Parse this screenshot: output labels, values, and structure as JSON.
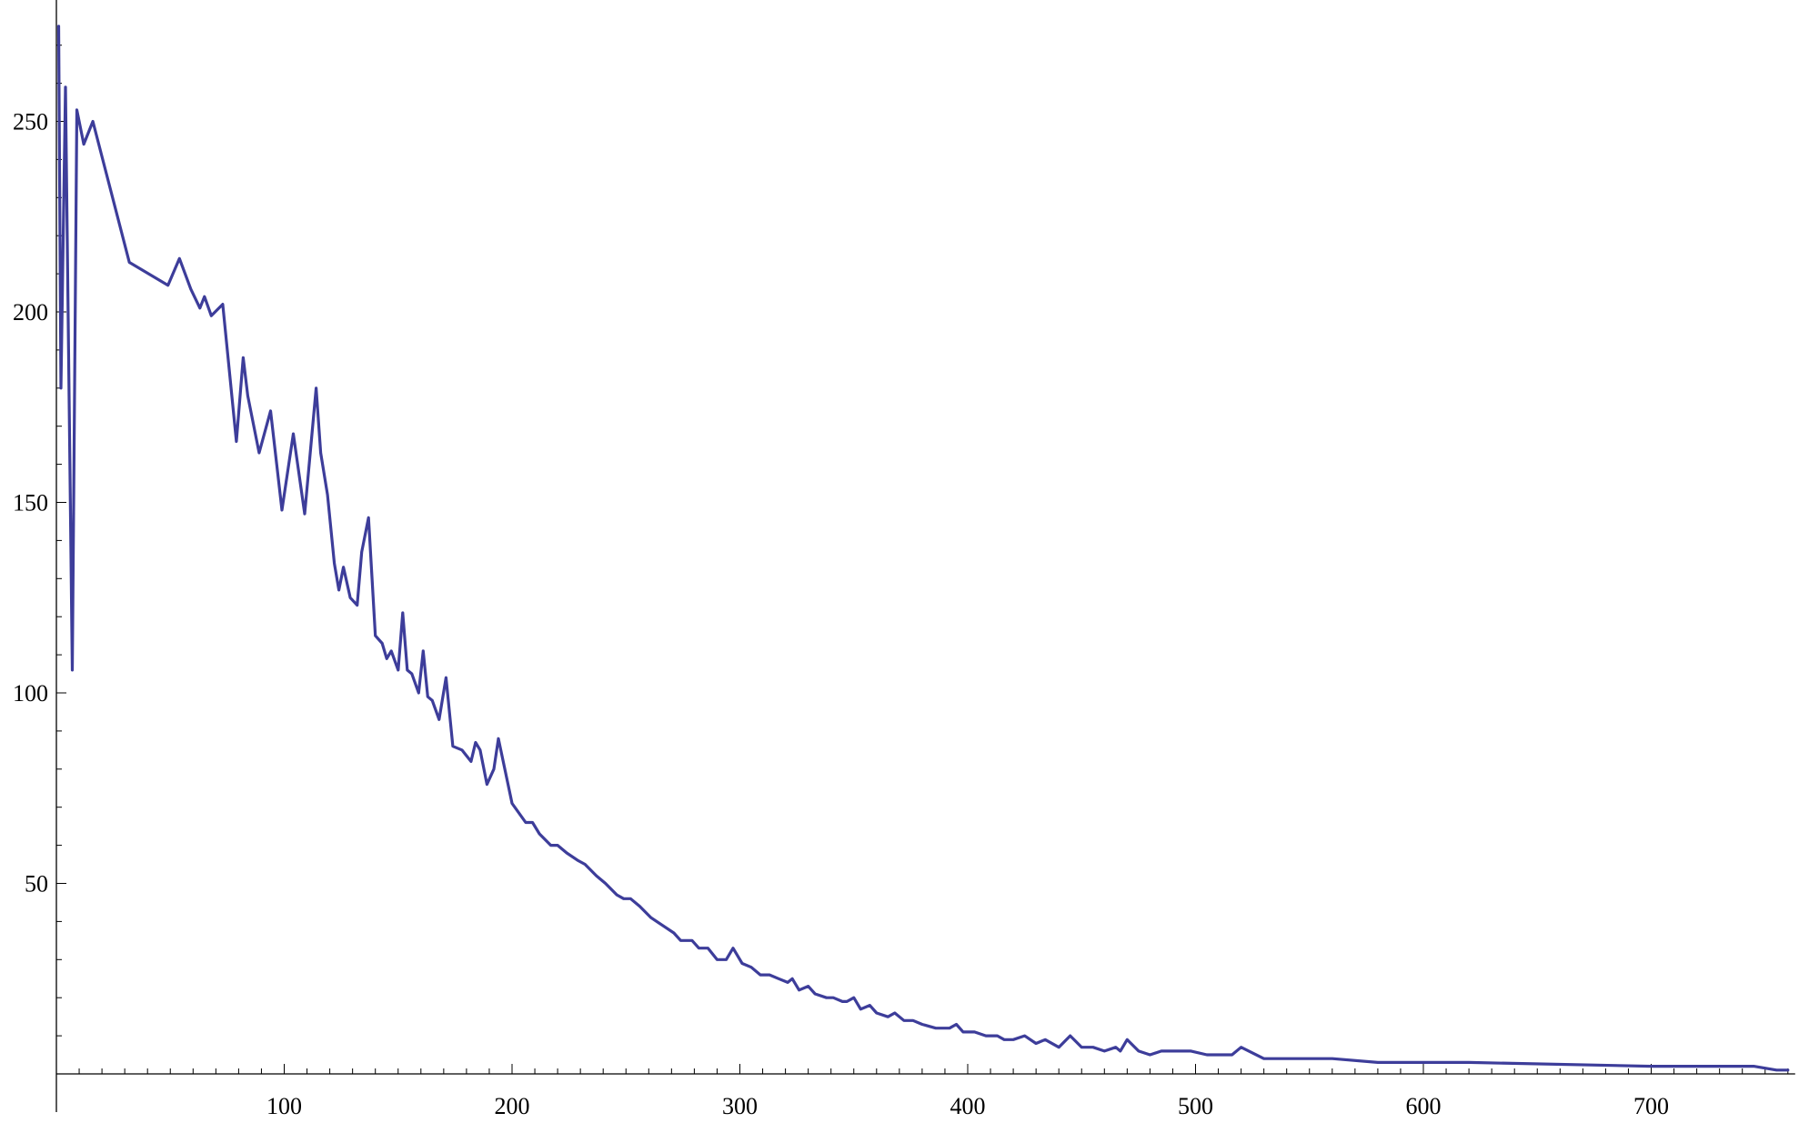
{
  "chart_data": {
    "type": "line",
    "title": "",
    "xlabel": "",
    "ylabel": "",
    "xlim": [
      0,
      760
    ],
    "ylim": [
      0,
      275
    ],
    "x_ticks": [
      100,
      200,
      300,
      400,
      500,
      600,
      700
    ],
    "y_ticks": [
      50,
      100,
      150,
      200,
      250
    ],
    "x_minor_step": 10,
    "y_minor_step": 10,
    "grid": false,
    "line_color": "#3d3d9a",
    "series": [
      {
        "x": [
          1,
          2,
          4,
          7,
          9,
          12,
          16,
          32,
          49,
          54,
          59,
          63,
          65,
          68,
          73,
          79,
          82,
          84,
          89,
          94,
          99,
          104,
          109,
          114,
          116,
          119,
          122,
          124,
          126,
          129,
          132,
          134,
          137,
          140,
          143,
          145,
          147,
          150,
          152,
          154,
          156,
          159,
          161,
          163,
          165,
          168,
          171,
          174,
          178,
          182,
          184,
          186,
          189,
          192,
          194,
          200,
          206,
          209,
          212,
          217,
          220,
          224,
          229,
          232,
          237,
          241,
          246,
          249,
          252,
          256,
          261,
          266,
          271,
          274,
          279,
          282,
          286,
          290,
          294,
          297,
          301,
          305,
          309,
          313,
          317,
          321,
          323,
          326,
          330,
          333,
          338,
          341,
          345,
          347,
          350,
          353,
          357,
          360,
          365,
          368,
          372,
          376,
          380,
          386,
          392,
          395,
          398,
          403,
          408,
          413,
          416,
          420,
          425,
          430,
          434,
          440,
          445,
          450,
          455,
          460,
          465,
          467,
          470,
          475,
          480,
          485,
          492,
          498,
          505,
          510,
          516,
          520,
          530,
          540,
          550,
          560,
          580,
          600,
          620,
          700,
          745,
          755,
          760
        ],
        "values": [
          275,
          180,
          259,
          106,
          253,
          244,
          250,
          213,
          207,
          214,
          206,
          201,
          204,
          199,
          202,
          166,
          188,
          178,
          163,
          174,
          148,
          168,
          147,
          180,
          163,
          152,
          134,
          127,
          133,
          125,
          123,
          137,
          146,
          115,
          113,
          109,
          111,
          106,
          121,
          106,
          105,
          100,
          111,
          99,
          98,
          93,
          104,
          86,
          85,
          82,
          87,
          85,
          76,
          80,
          88,
          71,
          66,
          66,
          63,
          60,
          60,
          58,
          56,
          55,
          52,
          50,
          47,
          46,
          46,
          44,
          41,
          39,
          37,
          35,
          35,
          33,
          33,
          30,
          30,
          33,
          29,
          28,
          26,
          26,
          25,
          24,
          25,
          22,
          23,
          21,
          20,
          20,
          19,
          19,
          20,
          17,
          18,
          16,
          15,
          16,
          14,
          14,
          13,
          12,
          12,
          13,
          11,
          11,
          10,
          10,
          9,
          9,
          10,
          8,
          9,
          7,
          10,
          7,
          7,
          6,
          7,
          6,
          9,
          6,
          5,
          6,
          6,
          6,
          5,
          5,
          5,
          7,
          4,
          4,
          4,
          4,
          3,
          3,
          3,
          2,
          2,
          1,
          1
        ]
      }
    ]
  }
}
